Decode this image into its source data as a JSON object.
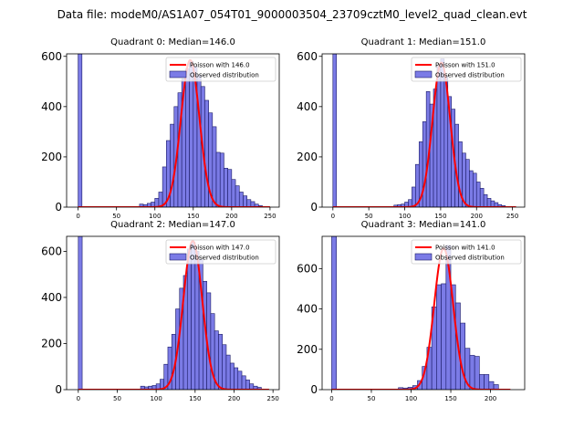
{
  "figure_title": "Data file: modeM0/AS1A07_054T01_9000003504_23709cztM0_level2_quad_clean.evt",
  "colors": {
    "bar_fill": "#7b7be6",
    "bar_edge": "#1a1a66",
    "poisson_line": "#ff0000"
  },
  "chart_data": [
    {
      "type": "bar",
      "title": "Quadrant 0: Median=146.0",
      "xlim": [
        -15,
        262
      ],
      "ylim": [
        0,
        610
      ],
      "xticks": [
        0,
        50,
        100,
        150,
        200,
        250
      ],
      "yticks": [
        0,
        200,
        400,
        600
      ],
      "bin_width": 5,
      "bins": [
        {
          "x": 0,
          "y": 610
        },
        {
          "x": 80,
          "y": 12
        },
        {
          "x": 85,
          "y": 10
        },
        {
          "x": 90,
          "y": 15
        },
        {
          "x": 95,
          "y": 20
        },
        {
          "x": 100,
          "y": 35
        },
        {
          "x": 105,
          "y": 60
        },
        {
          "x": 110,
          "y": 160
        },
        {
          "x": 115,
          "y": 265
        },
        {
          "x": 120,
          "y": 330
        },
        {
          "x": 125,
          "y": 400
        },
        {
          "x": 130,
          "y": 455
        },
        {
          "x": 135,
          "y": 510
        },
        {
          "x": 140,
          "y": 550
        },
        {
          "x": 145,
          "y": 580
        },
        {
          "x": 150,
          "y": 560
        },
        {
          "x": 155,
          "y": 525
        },
        {
          "x": 160,
          "y": 480
        },
        {
          "x": 165,
          "y": 425
        },
        {
          "x": 170,
          "y": 375
        },
        {
          "x": 175,
          "y": 320
        },
        {
          "x": 180,
          "y": 218
        },
        {
          "x": 185,
          "y": 215
        },
        {
          "x": 190,
          "y": 155
        },
        {
          "x": 195,
          "y": 150
        },
        {
          "x": 200,
          "y": 110
        },
        {
          "x": 205,
          "y": 85
        },
        {
          "x": 210,
          "y": 60
        },
        {
          "x": 215,
          "y": 45
        },
        {
          "x": 220,
          "y": 30
        },
        {
          "x": 225,
          "y": 22
        },
        {
          "x": 230,
          "y": 12
        },
        {
          "x": 235,
          "y": 6
        }
      ],
      "poisson": {
        "mean": 146.0,
        "peak": 585,
        "x_range": [
          0,
          250
        ]
      },
      "legend": {
        "line_label": "Poisson with 146.0",
        "bar_label": "Observed distribution",
        "position": "top-right"
      }
    },
    {
      "type": "bar",
      "title": "Quadrant 1: Median=151.0",
      "xlim": [
        -15,
        267
      ],
      "ylim": [
        0,
        610
      ],
      "xticks": [
        0,
        50,
        100,
        150,
        200,
        250
      ],
      "yticks": [
        0,
        200,
        400,
        600
      ],
      "bin_width": 5,
      "bins": [
        {
          "x": 0,
          "y": 610
        },
        {
          "x": 85,
          "y": 8
        },
        {
          "x": 90,
          "y": 10
        },
        {
          "x": 95,
          "y": 12
        },
        {
          "x": 100,
          "y": 20
        },
        {
          "x": 105,
          "y": 30
        },
        {
          "x": 110,
          "y": 80
        },
        {
          "x": 115,
          "y": 170
        },
        {
          "x": 120,
          "y": 260
        },
        {
          "x": 125,
          "y": 340
        },
        {
          "x": 130,
          "y": 460
        },
        {
          "x": 135,
          "y": 410
        },
        {
          "x": 140,
          "y": 470
        },
        {
          "x": 145,
          "y": 560
        },
        {
          "x": 150,
          "y": 590
        },
        {
          "x": 155,
          "y": 520
        },
        {
          "x": 160,
          "y": 440
        },
        {
          "x": 165,
          "y": 390
        },
        {
          "x": 170,
          "y": 330
        },
        {
          "x": 175,
          "y": 260
        },
        {
          "x": 180,
          "y": 215
        },
        {
          "x": 185,
          "y": 190
        },
        {
          "x": 190,
          "y": 145
        },
        {
          "x": 195,
          "y": 135
        },
        {
          "x": 200,
          "y": 100
        },
        {
          "x": 205,
          "y": 75
        },
        {
          "x": 210,
          "y": 50
        },
        {
          "x": 215,
          "y": 35
        },
        {
          "x": 220,
          "y": 25
        },
        {
          "x": 225,
          "y": 18
        },
        {
          "x": 230,
          "y": 10
        },
        {
          "x": 235,
          "y": 6
        }
      ],
      "poisson": {
        "mean": 151.0,
        "peak": 575,
        "x_range": [
          0,
          255
        ]
      },
      "legend": {
        "line_label": "Poisson with 151.0",
        "bar_label": "Observed distribution",
        "position": "top-right"
      }
    },
    {
      "type": "bar",
      "title": "Quadrant 2: Median=147.0",
      "xlim": [
        -15,
        258
      ],
      "ylim": [
        0,
        665
      ],
      "xticks": [
        0,
        50,
        100,
        150,
        200,
        250
      ],
      "yticks": [
        0,
        200,
        400,
        600
      ],
      "bin_width": 5,
      "bins": [
        {
          "x": 0,
          "y": 665
        },
        {
          "x": 80,
          "y": 15
        },
        {
          "x": 85,
          "y": 12
        },
        {
          "x": 90,
          "y": 15
        },
        {
          "x": 95,
          "y": 18
        },
        {
          "x": 100,
          "y": 25
        },
        {
          "x": 105,
          "y": 45
        },
        {
          "x": 110,
          "y": 110
        },
        {
          "x": 115,
          "y": 185
        },
        {
          "x": 120,
          "y": 240
        },
        {
          "x": 125,
          "y": 350
        },
        {
          "x": 130,
          "y": 440
        },
        {
          "x": 135,
          "y": 495
        },
        {
          "x": 140,
          "y": 610
        },
        {
          "x": 145,
          "y": 640
        },
        {
          "x": 150,
          "y": 600
        },
        {
          "x": 155,
          "y": 565
        },
        {
          "x": 160,
          "y": 470
        },
        {
          "x": 165,
          "y": 420
        },
        {
          "x": 170,
          "y": 330
        },
        {
          "x": 175,
          "y": 255
        },
        {
          "x": 180,
          "y": 240
        },
        {
          "x": 185,
          "y": 195
        },
        {
          "x": 190,
          "y": 150
        },
        {
          "x": 195,
          "y": 115
        },
        {
          "x": 200,
          "y": 95
        },
        {
          "x": 205,
          "y": 80
        },
        {
          "x": 210,
          "y": 60
        },
        {
          "x": 215,
          "y": 42
        },
        {
          "x": 220,
          "y": 25
        },
        {
          "x": 225,
          "y": 15
        },
        {
          "x": 230,
          "y": 10
        }
      ],
      "poisson": {
        "mean": 147.0,
        "peak": 645,
        "x_range": [
          0,
          245
        ]
      },
      "legend": {
        "line_label": "Poisson with 147.0",
        "bar_label": "Observed distribution",
        "position": "top-right"
      }
    },
    {
      "type": "bar",
      "title": "Quadrant 3: Median=141.0",
      "xlim": [
        -12,
        243
      ],
      "ylim": [
        0,
        760
      ],
      "xticks": [
        0,
        50,
        100,
        150,
        200
      ],
      "yticks": [
        0,
        200,
        400,
        600
      ],
      "bin_width": 6,
      "bins": [
        {
          "x": 0,
          "y": 760
        },
        {
          "x": 84,
          "y": 10
        },
        {
          "x": 90,
          "y": 8
        },
        {
          "x": 96,
          "y": 12
        },
        {
          "x": 102,
          "y": 20
        },
        {
          "x": 108,
          "y": 45
        },
        {
          "x": 114,
          "y": 115
        },
        {
          "x": 120,
          "y": 210
        },
        {
          "x": 126,
          "y": 410
        },
        {
          "x": 132,
          "y": 520
        },
        {
          "x": 138,
          "y": 525
        },
        {
          "x": 144,
          "y": 715
        },
        {
          "x": 150,
          "y": 520
        },
        {
          "x": 156,
          "y": 430
        },
        {
          "x": 162,
          "y": 330
        },
        {
          "x": 168,
          "y": 205
        },
        {
          "x": 174,
          "y": 170
        },
        {
          "x": 180,
          "y": 165
        },
        {
          "x": 186,
          "y": 75
        },
        {
          "x": 192,
          "y": 75
        },
        {
          "x": 198,
          "y": 40
        },
        {
          "x": 204,
          "y": 25
        }
      ],
      "poisson": {
        "mean": 141.0,
        "peak": 700,
        "x_range": [
          0,
          225
        ]
      },
      "legend": {
        "line_label": "Poisson with 141.0",
        "bar_label": "Observed distribution",
        "position": "top-right"
      }
    }
  ]
}
